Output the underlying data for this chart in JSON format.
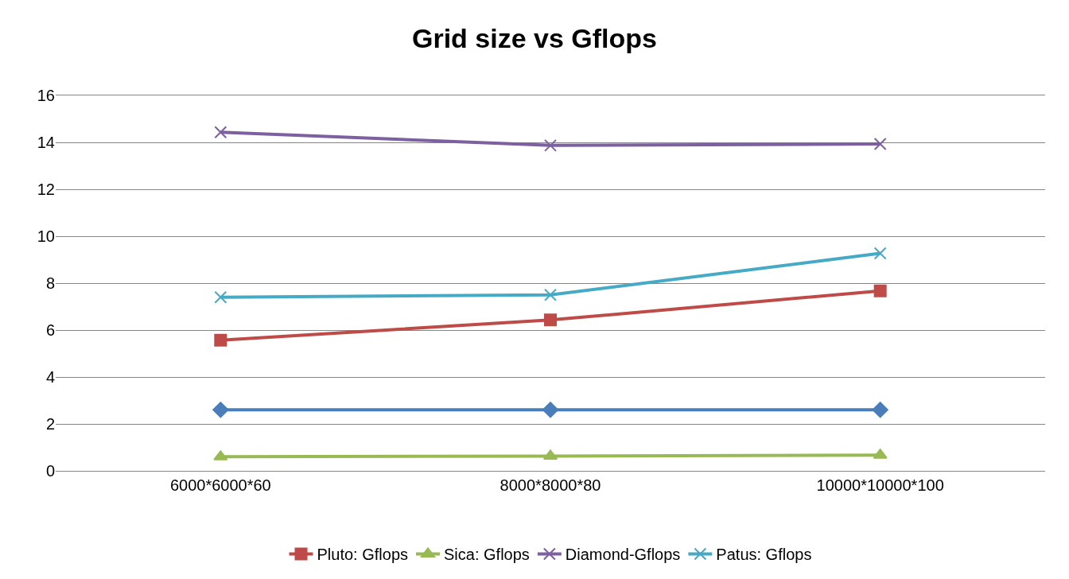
{
  "chart_data": {
    "type": "line",
    "title": "Grid size vs Gflops",
    "categories": [
      "6000*6000*60",
      "8000*8000*80",
      "10000*10000*100"
    ],
    "series": [
      {
        "color": "#4a7ebb",
        "marker": "diamond",
        "values": [
          2.6,
          2.6,
          2.6
        ]
      },
      {
        "name": "Pluto: Gflops",
        "color": "#be4b48",
        "marker": "square",
        "values": [
          5.57,
          6.43,
          7.67
        ]
      },
      {
        "name": "Sica: Gflops",
        "color": "#98b954",
        "marker": "triangle",
        "values": [
          0.6,
          0.63,
          0.67
        ]
      },
      {
        "name": "Diamond-Gflops",
        "color": "#7d60a0",
        "marker": "cross",
        "values": [
          14.43,
          13.87,
          13.93
        ]
      },
      {
        "name": "Patus: Gflops",
        "color": "#46aac5",
        "marker": "cross",
        "values": [
          7.4,
          7.5,
          9.27
        ]
      }
    ],
    "ylim": [
      0,
      16
    ],
    "yticks": [
      0,
      2,
      4,
      6,
      8,
      10,
      12,
      14,
      16
    ],
    "grid": "y",
    "legend": "bottom"
  }
}
